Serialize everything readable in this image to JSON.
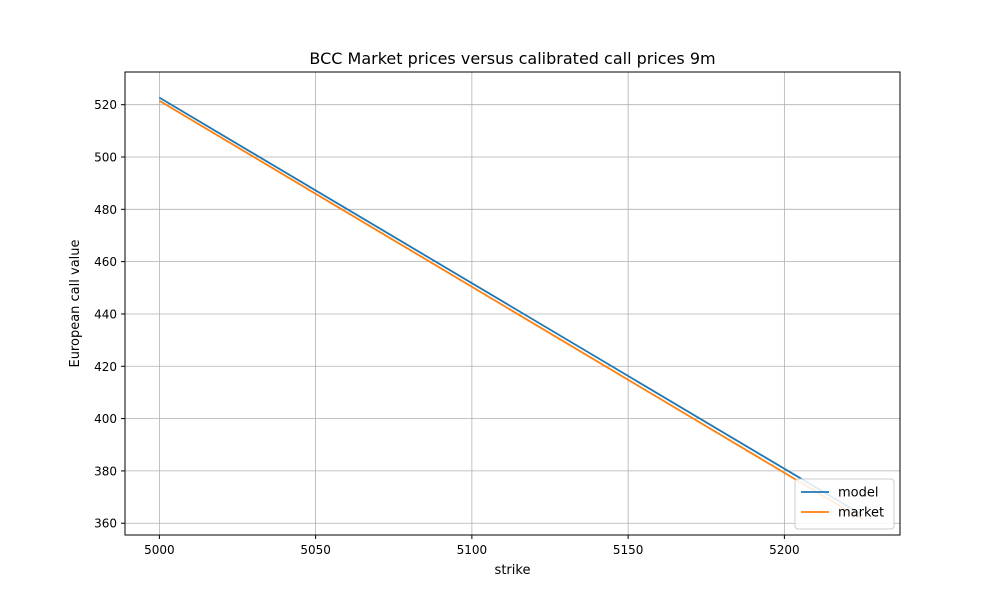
{
  "chart_data": {
    "type": "line",
    "title": "BCC Market prices versus calibrated call prices 9m",
    "xlabel": "strike",
    "ylabel": "European call value",
    "xlim": [
      4989,
      5237
    ],
    "ylim": [
      355.5,
      532.5
    ],
    "xticks": [
      5000,
      5050,
      5100,
      5150,
      5200
    ],
    "yticks": [
      360,
      380,
      400,
      420,
      440,
      460,
      480,
      500,
      520
    ],
    "grid": true,
    "legend_position": "lower right",
    "series": [
      {
        "name": "model",
        "color": "#1f77b4",
        "x": [
          5000,
          5225
        ],
        "y": [
          522.7,
          363.1
        ]
      },
      {
        "name": "market",
        "color": "#ff7f0e",
        "x": [
          5000,
          5225
        ],
        "y": [
          521.5,
          361.5
        ]
      }
    ]
  }
}
